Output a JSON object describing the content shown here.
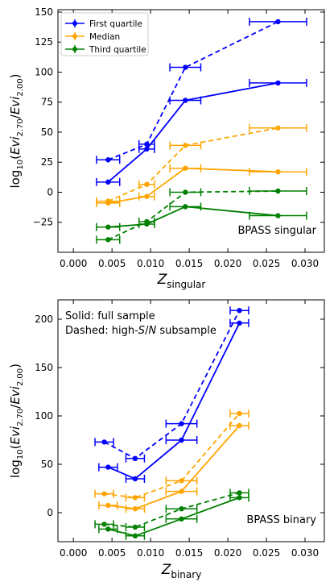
{
  "colors": {
    "first_quartile": "#0000ff",
    "median": "#ffa500",
    "third_quartile": "#008000",
    "frame": "#000000"
  },
  "chart_data": [
    {
      "type": "line",
      "xlabel_main": "Z",
      "xlabel_sub": "singular",
      "ylabel": "log10(Evi2.70/Evi2.00)",
      "ylabel_parts": {
        "base": "log",
        "base_sub": "10",
        "open": "(",
        "num": "Evi",
        "num_sub": "2.70",
        "slash": "/",
        "den": "Evi",
        "den_sub": "2.00",
        "close": ")"
      },
      "xlim": [
        -0.002,
        0.0325
      ],
      "ylim": [
        -50,
        152
      ],
      "xticks": [
        0.0,
        0.005,
        0.01,
        0.015,
        0.02,
        0.025,
        0.03
      ],
      "xtick_labels": [
        "0.000",
        "0.005",
        "0.010",
        "0.015",
        "0.020",
        "0.025",
        "0.030"
      ],
      "yticks": [
        -25,
        0,
        25,
        50,
        75,
        100,
        125,
        150
      ],
      "ytick_labels": [
        "−25",
        "0",
        "25",
        "50",
        "75",
        "100",
        "125",
        "150"
      ],
      "annotation": "BPASS singular",
      "annotation_position": "bottom-right",
      "legend": {
        "position": "top-left",
        "entries": [
          "First quartile",
          "Median",
          "Third quartile"
        ]
      },
      "series": [
        {
          "name": "First quartile",
          "color": "#0000ff",
          "style": "solid",
          "x": [
            0.0045,
            0.0095,
            0.0145,
            0.0265
          ],
          "y": [
            8.5,
            36,
            76.5,
            91
          ],
          "xerr": [
            0.0015,
            0.001,
            0.002,
            0.0037
          ]
        },
        {
          "name": "First quartile",
          "color": "#0000ff",
          "style": "dashed",
          "x": [
            0.0045,
            0.0095,
            0.0145,
            0.0265
          ],
          "y": [
            27,
            40,
            104,
            142
          ],
          "xerr": [
            0.0015,
            0.001,
            0.002,
            0.0037
          ]
        },
        {
          "name": "Median",
          "color": "#ffa500",
          "style": "solid",
          "x": [
            0.0045,
            0.0095,
            0.0145,
            0.0265
          ],
          "y": [
            -9,
            -3.5,
            20,
            17
          ],
          "xerr": [
            0.0015,
            0.001,
            0.002,
            0.0037
          ]
        },
        {
          "name": "Median",
          "color": "#ffa500",
          "style": "dashed",
          "x": [
            0.0045,
            0.0095,
            0.0145,
            0.0265
          ],
          "y": [
            -7.5,
            6.5,
            39,
            53.5
          ],
          "xerr": [
            0.0015,
            0.001,
            0.002,
            0.0037
          ]
        },
        {
          "name": "Third quartile",
          "color": "#008000",
          "style": "solid",
          "x": [
            0.0045,
            0.0095,
            0.0145,
            0.0265
          ],
          "y": [
            -29,
            -26.5,
            -12,
            -19.5
          ],
          "xerr": [
            0.0015,
            0.001,
            0.002,
            0.0037
          ]
        },
        {
          "name": "Third quartile",
          "color": "#008000",
          "style": "dashed",
          "x": [
            0.0045,
            0.0095,
            0.0145,
            0.0265
          ],
          "y": [
            -39.5,
            -24.5,
            0,
            1
          ],
          "xerr": [
            0.0015,
            0.001,
            0.002,
            0.0037
          ]
        }
      ]
    },
    {
      "type": "line",
      "xlabel_main": "Z",
      "xlabel_sub": "binary",
      "ylabel": "log10(Evi2.70/Evi2.00)",
      "ylabel_parts": {
        "base": "log",
        "base_sub": "10",
        "open": "(",
        "num": "Evi",
        "num_sub": "2.70",
        "slash": "/",
        "den": "Evi",
        "den_sub": "2.00",
        "close": ")"
      },
      "xlim": [
        -0.002,
        0.0325
      ],
      "ylim": [
        -30,
        220
      ],
      "xticks": [
        0.0,
        0.005,
        0.01,
        0.015,
        0.02,
        0.025,
        0.03
      ],
      "xtick_labels": [
        "0.000",
        "0.005",
        "0.010",
        "0.015",
        "0.020",
        "0.025",
        "0.030"
      ],
      "yticks": [
        0,
        50,
        100,
        150,
        200
      ],
      "ytick_labels": [
        "0",
        "50",
        "100",
        "150",
        "200"
      ],
      "annotation": "BPASS binary",
      "annotation_position": "bottom-right",
      "notes": {
        "solid": "Solid: full sample",
        "dashed_prefix": "Dashed: high-",
        "dashed_s": "S",
        "dashed_slash": "/",
        "dashed_n": "N",
        "dashed_suffix": " subsample"
      },
      "series": [
        {
          "name": "First quartile",
          "color": "#0000ff",
          "style": "solid",
          "x": [
            0.0045,
            0.008,
            0.014,
            0.0215
          ],
          "y": [
            47,
            35,
            75,
            196
          ],
          "xerr": [
            0.0012,
            0.0012,
            0.002,
            0.0012
          ]
        },
        {
          "name": "First quartile",
          "color": "#0000ff",
          "style": "dashed",
          "x": [
            0.004,
            0.008,
            0.014,
            0.0215
          ],
          "y": [
            73,
            56,
            92,
            209
          ],
          "xerr": [
            0.0012,
            0.0012,
            0.002,
            0.0012
          ]
        },
        {
          "name": "Median",
          "color": "#ffa500",
          "style": "solid",
          "x": [
            0.0045,
            0.008,
            0.014,
            0.0215
          ],
          "y": [
            7.5,
            4,
            22,
            90
          ],
          "xerr": [
            0.0012,
            0.0012,
            0.002,
            0.0012
          ]
        },
        {
          "name": "Median",
          "color": "#ffa500",
          "style": "dashed",
          "x": [
            0.004,
            0.008,
            0.014,
            0.0215
          ],
          "y": [
            19.5,
            15.5,
            33,
            102.5
          ],
          "xerr": [
            0.0012,
            0.0012,
            0.002,
            0.0012
          ]
        },
        {
          "name": "Third quartile",
          "color": "#008000",
          "style": "solid",
          "x": [
            0.0045,
            0.008,
            0.014,
            0.0215
          ],
          "y": [
            -17,
            -24,
            -6.5,
            15.5
          ],
          "xerr": [
            0.0012,
            0.0012,
            0.002,
            0.0012
          ]
        },
        {
          "name": "Third quartile",
          "color": "#008000",
          "style": "dashed",
          "x": [
            0.004,
            0.008,
            0.014,
            0.0215
          ],
          "y": [
            -12,
            -15,
            4,
            20.5
          ],
          "xerr": [
            0.0012,
            0.0012,
            0.002,
            0.0012
          ]
        }
      ]
    }
  ]
}
